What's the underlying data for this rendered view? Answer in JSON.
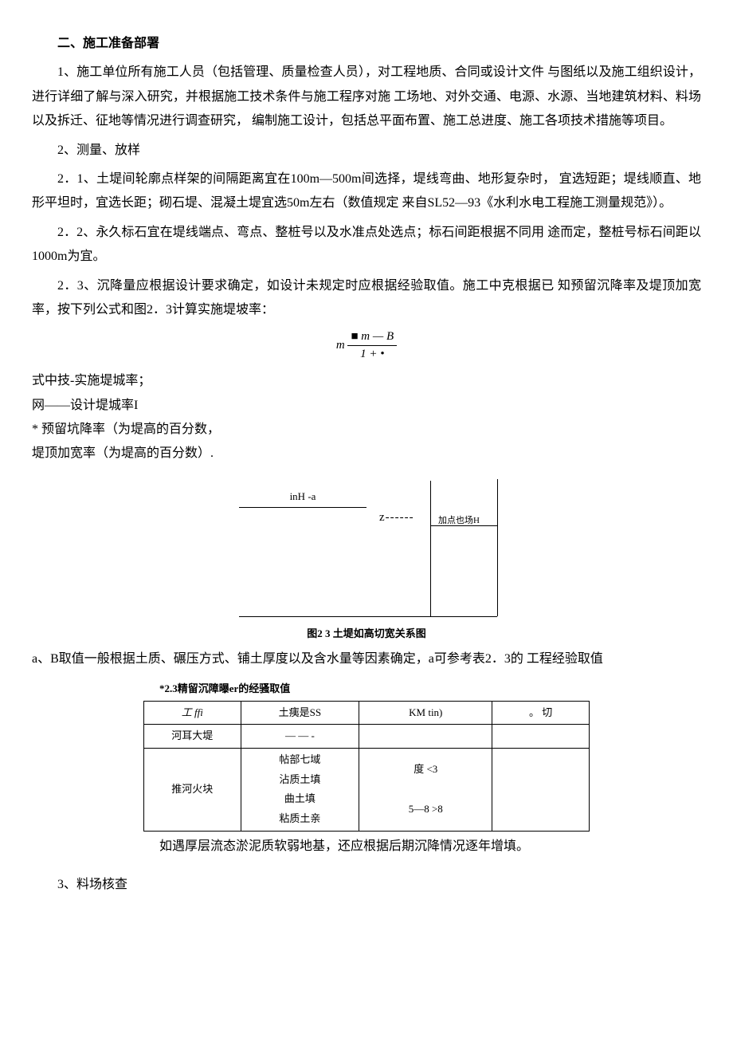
{
  "heading": "二、施工准备部署",
  "p1": "1、施工单位所有施工人员（包括管理、质量检查人员），对工程地质、合同或设计文件 与图纸以及施工组织设计，进行详细了解与深入研究，并根据施工技术条件与施工程序对施 工场地、对外交通、电源、水源、当地建筑材料、料场以及拆迁、征地等情况进行调查研究， 编制施工设计，包括总平面布置、施工总进度、施工各项技术措施等项目。",
  "p2": "2、测量、放样",
  "p3": "2．1、土堤间轮廓点样架的间隔距离宜在100m—500m间选择，堤线弯曲、地形复杂时， 宜选短距；堤线顺直、地形平坦时，宜选长距；砌石堤、混凝土堤宜选50m左右（数值规定 来自SL52—93《水利水电工程施工测量规范》）。",
  "p4": "2．2、永久标石宜在堤线端点、弯点、整桩号以及水准点处选点；标石间距根据不同用 途而定，整桩号标石间距以1000m为宜。",
  "p5": "2．3、沉降量应根据设计要求确定，如设计未规定时应根据经验取值。施工中克根据已 知预留沉降率及堤顶加宽率，按下列公式和图2．3计算实施堤坡率：",
  "formula_left": "m",
  "formula_num": "■ m — B",
  "formula_den": "1  +  •",
  "l1": "式中技-实施堤城率；",
  "l2": "网——设计堤城率I",
  "l3": "* 预留坑降率（为堤高的百分数，",
  "l4": "堤顶加宽率（为堤高的百分数）.",
  "diag_top": "inH -a",
  "diag_z": "z------",
  "diag_h": "加点也场H",
  "caption": "图2 3 土堤如高切宽关系图",
  "p6": "a、B取值一般根据土质、碾压方式、铺土厚度以及含水量等因素确定，a可参考表2．3的 工程经验取值",
  "table_caption": "*2.3精留沉障曝er的经骚取值",
  "table": {
    "headers": [
      "工 ffi",
      "土痍是SS",
      "KM  tin)",
      "。 切"
    ],
    "rows": [
      [
        "河耳大堤",
        "— — -",
        "",
        ""
      ],
      [
        "推河火块",
        "帖部七域\n沾质土填\n曲土填\n粘质土亲",
        "度 <3\n\n5—8 >8",
        ""
      ]
    ]
  },
  "after_table": "如遇厚层流态淤泥质软弱地基，还应根据后期沉降情况逐年增填。",
  "p7": "3、料场核查"
}
